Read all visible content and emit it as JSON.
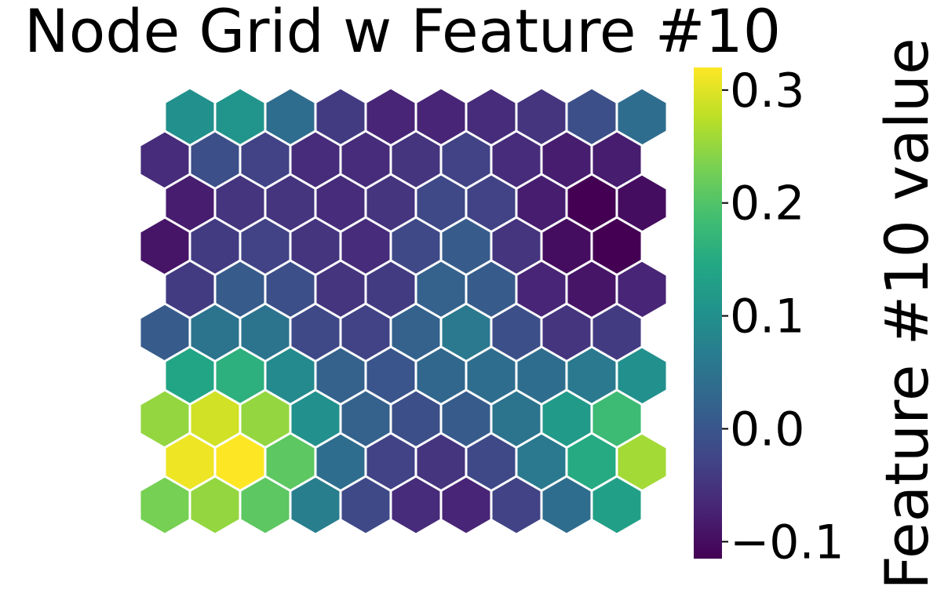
{
  "chart_data": {
    "type": "heatmap",
    "title": "Node Grid w Feature #10",
    "colorbar": {
      "label": "Feature #10 value",
      "range": [
        -0.115,
        0.32
      ],
      "ticks": [
        -0.1,
        0.0,
        0.1,
        0.2,
        0.3
      ],
      "tick_labels": [
        "−0.1",
        "0.0",
        "0.1",
        "0.2",
        "0.3"
      ],
      "colormap": "viridis"
    },
    "grid": {
      "rows": 10,
      "cols": 10,
      "layout": "hexagonal",
      "values": [
        [
          0.1,
          0.11,
          0.04,
          -0.04,
          -0.07,
          -0.07,
          -0.06,
          -0.05,
          -0.01,
          0.04
        ],
        [
          -0.06,
          -0.01,
          -0.03,
          -0.06,
          -0.06,
          -0.05,
          -0.03,
          -0.06,
          -0.08,
          -0.08
        ],
        [
          -0.08,
          -0.05,
          -0.05,
          -0.06,
          -0.05,
          -0.02,
          -0.03,
          -0.08,
          -0.115,
          -0.1
        ],
        [
          -0.09,
          -0.04,
          -0.03,
          -0.05,
          -0.06,
          -0.02,
          0.01,
          -0.05,
          -0.1,
          -0.115
        ],
        [
          -0.04,
          0.01,
          -0.01,
          -0.05,
          -0.04,
          0.02,
          0.01,
          -0.07,
          -0.09,
          -0.07
        ],
        [
          0.01,
          0.05,
          0.05,
          -0.02,
          -0.03,
          0.02,
          0.06,
          -0.01,
          -0.05,
          -0.04
        ],
        [
          0.14,
          0.16,
          0.09,
          0.02,
          0.0,
          0.03,
          0.04,
          0.04,
          0.06,
          0.1
        ],
        [
          0.25,
          0.29,
          0.25,
          0.1,
          0.02,
          -0.01,
          0.01,
          0.05,
          0.12,
          0.18
        ],
        [
          0.31,
          0.32,
          0.21,
          0.04,
          -0.03,
          -0.05,
          -0.02,
          0.06,
          0.15,
          0.26
        ],
        [
          0.23,
          0.25,
          0.21,
          0.07,
          -0.02,
          -0.06,
          -0.07,
          -0.03,
          0.04,
          0.13
        ]
      ]
    }
  },
  "colors": {
    "hex_edge": "#ffffff",
    "text": "#000000"
  }
}
